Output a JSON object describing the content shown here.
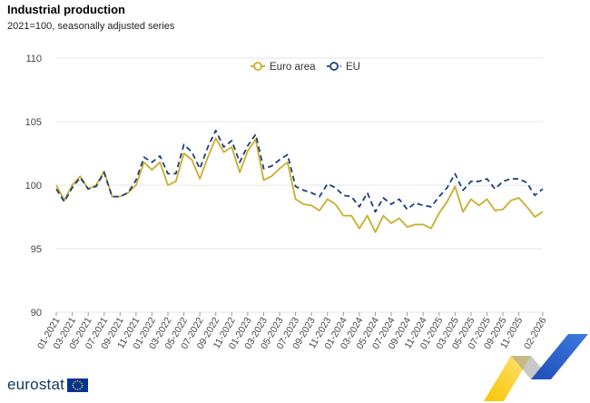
{
  "header": {
    "title": "Industrial production",
    "subtitle": "2021=100, seasonally adjusted series"
  },
  "footer": {
    "logo_text": "eurostat"
  },
  "colors": {
    "euro_area": "#c9ad2b",
    "eu": "#1c3f7a",
    "grid": "#e4e4e4",
    "axis_text": "#444444"
  },
  "chart_data": {
    "type": "line",
    "title": "Industrial production",
    "subtitle": "2021=100, seasonally adjusted series",
    "xlabel": "",
    "ylabel": "",
    "ylim": [
      90,
      110
    ],
    "yticks": [
      90,
      95,
      100,
      105,
      110
    ],
    "grid": true,
    "legend_position": "top-center",
    "x": [
      "01-2021",
      "02-2021",
      "03-2021",
      "04-2021",
      "05-2021",
      "06-2021",
      "07-2021",
      "08-2021",
      "09-2021",
      "10-2021",
      "11-2021",
      "12-2021",
      "01-2022",
      "02-2022",
      "03-2022",
      "04-2022",
      "05-2022",
      "06-2022",
      "07-2022",
      "08-2022",
      "09-2022",
      "10-2022",
      "11-2022",
      "12-2022",
      "01-2023",
      "02-2023",
      "03-2023",
      "04-2023",
      "05-2023",
      "06-2023",
      "07-2023",
      "08-2023",
      "09-2023",
      "10-2023",
      "11-2023",
      "12-2023",
      "01-2024",
      "02-2024",
      "03-2024",
      "04-2024",
      "05-2024",
      "06-2024",
      "07-2024",
      "08-2024",
      "09-2024",
      "10-2024",
      "11-2024",
      "12-2024",
      "01-2025",
      "02-2025",
      "03-2025",
      "04-2025",
      "05-2025",
      "06-2025",
      "07-2025",
      "08-2025",
      "09-2025",
      "10-2025",
      "11-2025",
      "12-2025",
      "01-2026",
      "02-2026"
    ],
    "xtick_labels": [
      "01-2021",
      "03-2021",
      "05-2021",
      "07-2021",
      "09-2021",
      "11-2021",
      "01-2022",
      "03-2022",
      "05-2022",
      "07-2022",
      "09-2022",
      "11-2022",
      "01-2023",
      "03-2023",
      "05-2023",
      "07-2023",
      "09-2023",
      "11-2023",
      "01-2024",
      "03-2024",
      "05-2024",
      "07-2024",
      "09-2024",
      "11-2024",
      "01-2025",
      "03-2025",
      "05-2025",
      "07-2025",
      "09-2025",
      "11-2025",
      "02-2026"
    ],
    "series": [
      {
        "name": "Euro area",
        "style": "solid",
        "values": [
          100.0,
          98.8,
          100.0,
          100.7,
          99.7,
          100.0,
          101.1,
          99.1,
          99.1,
          99.4,
          100.0,
          101.8,
          101.2,
          101.8,
          100.0,
          100.3,
          102.5,
          102.0,
          100.5,
          102.2,
          103.7,
          102.6,
          103.0,
          101.0,
          102.7,
          103.6,
          100.4,
          100.7,
          101.3,
          101.8,
          98.9,
          98.5,
          98.4,
          98.0,
          98.9,
          98.5,
          97.6,
          97.6,
          96.6,
          97.6,
          96.3,
          97.6,
          97.0,
          97.4,
          96.7,
          96.9,
          96.9,
          96.6,
          97.8,
          98.7,
          99.9,
          97.9,
          98.9,
          98.4,
          98.9,
          98.0,
          98.1,
          98.8,
          99.0,
          98.3,
          97.5,
          97.9
        ]
      },
      {
        "name": "EU",
        "style": "dashed",
        "values": [
          99.7,
          98.7,
          99.8,
          100.6,
          99.7,
          99.9,
          101.0,
          99.1,
          99.1,
          99.4,
          100.4,
          102.2,
          101.8,
          102.3,
          100.9,
          100.9,
          103.2,
          102.6,
          101.3,
          103.0,
          104.3,
          103.0,
          103.5,
          101.8,
          103.1,
          104.0,
          101.3,
          101.5,
          102.0,
          102.4,
          99.9,
          99.6,
          99.4,
          99.1,
          100.1,
          99.8,
          99.2,
          99.1,
          98.3,
          99.4,
          97.9,
          99.0,
          98.5,
          98.9,
          98.1,
          98.6,
          98.4,
          98.3,
          99.1,
          99.8,
          100.9,
          99.6,
          100.3,
          100.3,
          100.5,
          99.7,
          100.3,
          100.5,
          100.5,
          100.2,
          99.2,
          99.7
        ]
      }
    ]
  }
}
